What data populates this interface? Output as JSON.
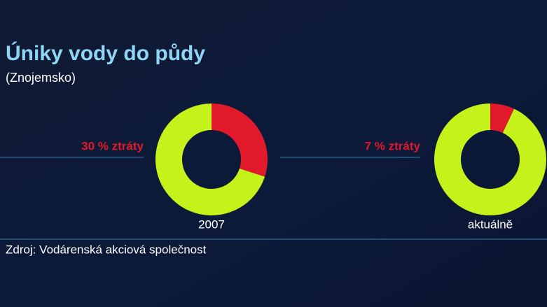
{
  "title": "Úniky vody do půdy",
  "subtitle": "(Znojemsko)",
  "source": "Zdroj: Vodárenská akciová společnost",
  "chart_data": [
    {
      "type": "pie",
      "donut": true,
      "title": "2007",
      "values": [
        30,
        70
      ],
      "value_labels": [
        "30 % ztráty",
        null
      ],
      "colors": [
        "#e0192b",
        "#c5f21a"
      ]
    },
    {
      "type": "pie",
      "donut": true,
      "title": "aktuálně",
      "values": [
        7,
        93
      ],
      "value_labels": [
        "7 % ztráty",
        null
      ],
      "colors": [
        "#e0192b",
        "#c5f21a"
      ]
    }
  ]
}
